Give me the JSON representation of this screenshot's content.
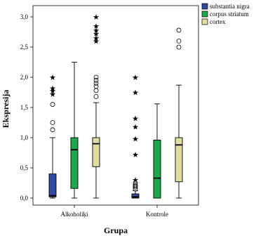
{
  "chart_data": {
    "type": "boxplot",
    "xlabel": "Grupa",
    "ylabel": "Ekspresija",
    "ylim": [
      0.0,
      3.0
    ],
    "yticks": [
      "0,0",
      "0,5",
      "1,0",
      "1,5",
      "2,0",
      "2,5",
      "3,0"
    ],
    "categories": [
      "Alkoholiķi",
      "Kontrole"
    ],
    "legend_position": "top-right",
    "series": [
      {
        "name": "substantia nigra",
        "color": "#2f4a9e",
        "boxes": [
          {
            "min": 0.0,
            "q1": 0.02,
            "median": 0.04,
            "q3": 0.4,
            "max": 1.0,
            "outliers_circle": [
              1.13,
              1.25,
              1.55
            ],
            "outliers_star": [
              1.72,
              1.78,
              1.82,
              2.0
            ]
          },
          {
            "min": 0.0,
            "q1": 0.0,
            "median": 0.02,
            "q3": 0.07,
            "max": 0.12,
            "outliers_circle": [
              0.15,
              0.18,
              0.2,
              0.22,
              0.25
            ],
            "outliers_star": [
              0.3,
              0.72,
              0.98,
              1.18,
              1.32,
              1.75,
              2.0
            ]
          }
        ]
      },
      {
        "name": "corpus striatum",
        "color": "#1fa84a",
        "boxes": [
          {
            "min": 0.0,
            "q1": 0.16,
            "median": 0.8,
            "q3": 1.0,
            "max": 2.25,
            "outliers_circle": [],
            "outliers_star": []
          },
          {
            "min": 0.0,
            "q1": 0.0,
            "median": 0.33,
            "q3": 0.96,
            "max": 1.56,
            "outliers_circle": [],
            "outliers_star": []
          }
        ]
      },
      {
        "name": "cortex",
        "color": "#e2dca0",
        "boxes": [
          {
            "min": 0.0,
            "q1": 0.52,
            "median": 0.9,
            "q3": 1.0,
            "max": 1.58,
            "outliers_circle": [
              1.68,
              1.78,
              1.85,
              1.9,
              1.95,
              2.0
            ],
            "outliers_star": [
              2.6,
              2.65,
              2.72,
              2.78,
              2.85,
              3.0
            ]
          },
          {
            "min": 0.0,
            "q1": 0.27,
            "median": 0.88,
            "q3": 1.0,
            "max": 1.87,
            "outliers_circle": [
              2.5,
              2.6,
              2.78
            ],
            "outliers_star": []
          }
        ]
      }
    ]
  }
}
